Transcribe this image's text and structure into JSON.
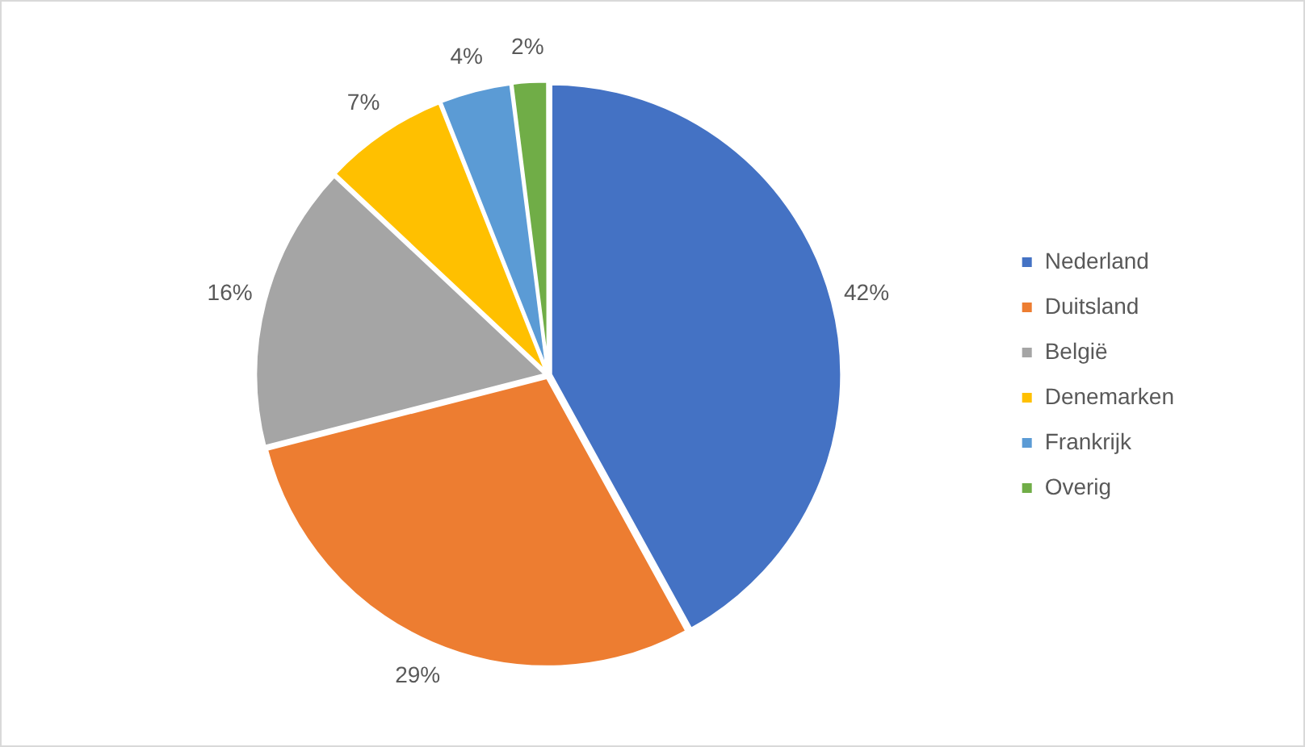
{
  "chart_data": {
    "type": "pie",
    "categories": [
      "Nederland",
      "Duitsland",
      "België",
      "Denemarken",
      "Frankrijk",
      "Overig"
    ],
    "values": [
      42,
      29,
      16,
      7,
      4,
      2
    ],
    "colors": [
      "#4472c4",
      "#ed7d31",
      "#a5a5a5",
      "#ffc000",
      "#5b9bd5",
      "#70ad47"
    ],
    "value_labels": [
      "42%",
      "29%",
      "16%",
      "7%",
      "4%",
      "2%"
    ],
    "legend": "right"
  }
}
